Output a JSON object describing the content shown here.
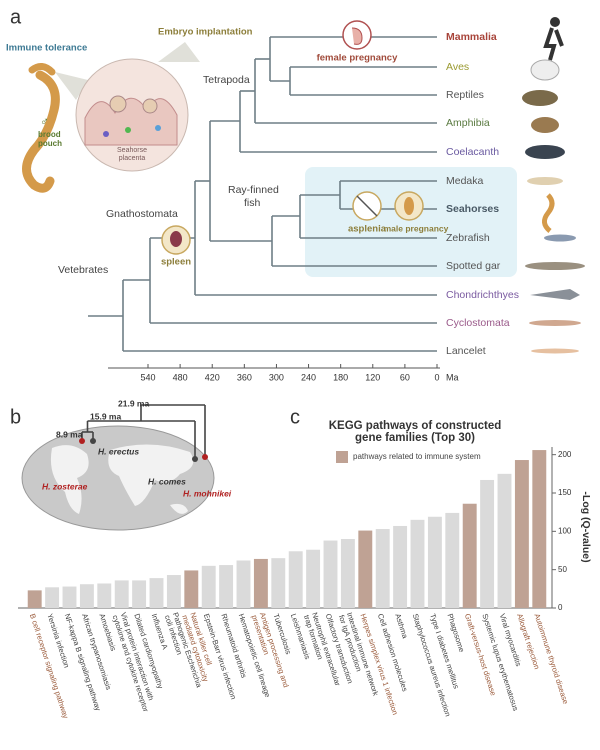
{
  "panel_labels": [
    "a",
    "b",
    "c"
  ],
  "panel_a": {
    "inset": {
      "immune_tolerance": "Immune tolerance",
      "embryo_implantation": "Embryo implantation",
      "brood_pouch_symbol": "♂",
      "brood_pouch": [
        "brood",
        "pouch"
      ],
      "placenta": [
        "Seahorse",
        "placenta"
      ]
    },
    "clades": {
      "tetrapoda": "Tetrapoda",
      "ray_finned": [
        "Ray-finned",
        "fish"
      ],
      "gnathostomata": "Gnathostomata",
      "vertebrates": "Vetebrates"
    },
    "annotations": {
      "female_pregnancy": "female pregnancy",
      "asplenia": "asplenia",
      "male_pregnancy": "male pregnancy",
      "spleen": "spleen"
    },
    "taxa": [
      "Mammalia",
      "Aves",
      "Reptiles",
      "Amphibia",
      "Coelacanth",
      "Medaka",
      "Seahorses",
      "Zebrafish",
      "Spotted gar",
      "Chondrichthyes",
      "Cyclostomata",
      "Lancelet"
    ],
    "time_axis": {
      "ticks": [
        540,
        480,
        420,
        360,
        300,
        240,
        180,
        120,
        60,
        0
      ],
      "unit": "Ma"
    }
  },
  "panel_b": {
    "divergences": [
      "21.9 ma",
      "15.9 ma",
      "8.9 ma"
    ],
    "species": [
      "H. zosterae",
      "H. erectus",
      "H. comes",
      "H. mohnikei"
    ]
  },
  "chart_data": {
    "type": "bar",
    "title": "KEGG pathways of constructed gene families (Top 30)",
    "ylabel": "-Log (Q-value)",
    "legend": {
      "label": "pathways related to immune system",
      "color": "#bfa294"
    },
    "categories": [
      "B cell receptor signaling pathway",
      "Yersinia infection",
      "NF-kappa B signaling pathway",
      "African trypanosomiasis",
      "Amoebiasis",
      "Viral protein interaction with cytokine and cytokine receptor",
      "Dilated cardiomyopathy",
      "Influenza A",
      "Pathogenic Escherichia coli infection",
      "Natural killer cell mediated cytotoxicity",
      "Epstein-Barr virus infection",
      "Rheumatoid arthritis",
      "Hematopoietic cell lineage",
      "Antigen processing and presentation",
      "Tuberculosis",
      "Leishmaniasis",
      "Neutrophil extracellular trap formation",
      "Olfactory transduction",
      "Intestinal immune network for IgA production",
      "Herpes simplex virus 1 infection",
      "Cell adhesion molecules",
      "Asthma",
      "Staphylococcus aureus infection",
      "Type I diabetes mellitus",
      "Phagosome",
      "Graft-versus-host disease",
      "Systemic lupus erythematosus",
      "Viral myocarditis",
      "Allograft rejection",
      "Autoimmune thyroid disease"
    ],
    "values": [
      23,
      27,
      28,
      31,
      32,
      36,
      36,
      39,
      43,
      49,
      55,
      56,
      62,
      64,
      65,
      74,
      76,
      88,
      90,
      101,
      103,
      107,
      115,
      119,
      124,
      136,
      167,
      175,
      193,
      206
    ],
    "colors": [
      "#bfa294",
      "#dadada",
      "#dadada",
      "#dadada",
      "#dadada",
      "#dadada",
      "#dadada",
      "#dadada",
      "#dadada",
      "#bfa294",
      "#dadada",
      "#dadada",
      "#dadada",
      "#bfa294",
      "#dadada",
      "#dadada",
      "#dadada",
      "#dadada",
      "#dadada",
      "#bfa294",
      "#dadada",
      "#dadada",
      "#dadada",
      "#dadada",
      "#dadada",
      "#bfa294",
      "#dadada",
      "#dadada",
      "#bfa294",
      "#bfa294"
    ],
    "ylim": [
      0,
      210
    ],
    "yticks": [
      0,
      50,
      100,
      150,
      200
    ]
  }
}
